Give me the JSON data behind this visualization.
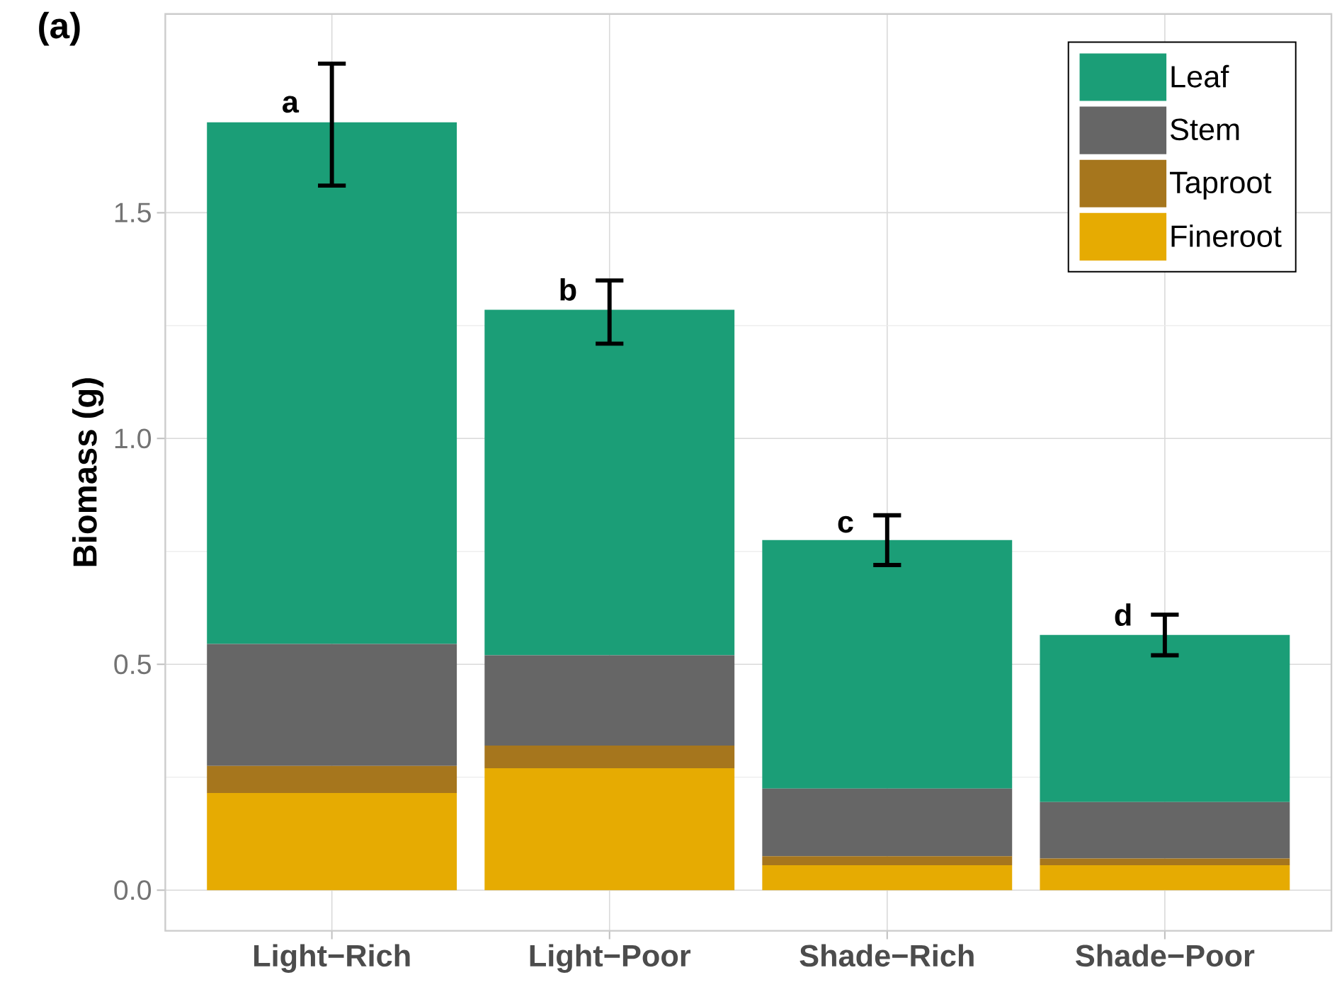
{
  "chart_data": {
    "type": "bar",
    "title": "(a)",
    "ylabel": "Biomass (g)",
    "stacked": true,
    "categories": [
      "Light−Rich",
      "Light−Poor",
      "Shade−Rich",
      "Shade−Poor"
    ],
    "series": [
      {
        "name": "Fineroot",
        "color": "#e6ab02",
        "values": [
          0.215,
          0.27,
          0.055,
          0.055
        ]
      },
      {
        "name": "Taproot",
        "color": "#a6761d",
        "values": [
          0.06,
          0.05,
          0.02,
          0.015
        ]
      },
      {
        "name": "Stem",
        "color": "#666666",
        "values": [
          0.27,
          0.2,
          0.15,
          0.125
        ]
      },
      {
        "name": "Leaf",
        "color": "#1b9e77",
        "values": [
          1.155,
          0.765,
          0.55,
          0.37
        ],
        "errors": [
          [
            1.56,
            1.83
          ],
          [
            1.21,
            1.35
          ],
          [
            0.72,
            0.83
          ],
          [
            0.52,
            0.61
          ]
        ]
      }
    ],
    "annotations": [
      {
        "text": "a",
        "x": "Light−Rich",
        "y": 1.74
      },
      {
        "text": "b",
        "x": "Light−Poor",
        "y": 1.33
      },
      {
        "text": "c",
        "x": "Shade−Rich",
        "y": 0.81
      },
      {
        "text": "d",
        "x": "Shade−Poor",
        "y": 0.61
      }
    ],
    "ylim": [
      -0.09,
      1.94
    ],
    "yticks": [
      {
        "value": 0,
        "label": "0.0"
      },
      {
        "value": 0.5,
        "label": "0.5"
      },
      {
        "value": 1,
        "label": "1.0"
      },
      {
        "value": 1.5,
        "label": "1.5"
      }
    ],
    "grid": true,
    "legend": "top right"
  }
}
